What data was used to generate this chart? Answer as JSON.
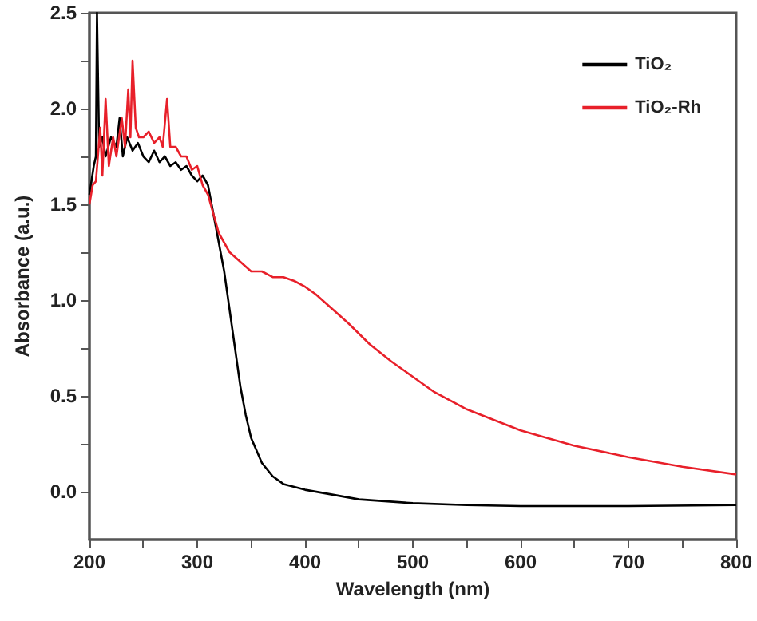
{
  "chart_data": {
    "type": "line",
    "xlabel": "Wavelength (nm)",
    "ylabel": "Absorbance (a.u.)",
    "xlim": [
      200,
      800
    ],
    "ylim": [
      -0.25,
      2.5
    ],
    "xticks": [
      200,
      {
        "value": 250,
        "label": null
      },
      300,
      {
        "value": 350,
        "label": null
      },
      400,
      {
        "value": 450,
        "label": null
      },
      500,
      {
        "value": 550,
        "label": null
      },
      600,
      {
        "value": 650,
        "label": null
      },
      700,
      {
        "value": 750,
        "label": null
      },
      800
    ],
    "yticks": [
      {
        "value": 0,
        "label": "0.0"
      },
      {
        "value": 0.25,
        "label": null
      },
      0.5,
      {
        "value": 0.75,
        "label": null
      },
      {
        "value": 1,
        "label": "1.0"
      },
      {
        "value": 1.25,
        "label": null
      },
      1.5,
      {
        "value": 1.75,
        "label": null
      },
      {
        "value": 2,
        "label": "2.0"
      },
      {
        "value": 2.25,
        "label": null
      },
      2.5
    ],
    "grid": false,
    "legend": "top right",
    "marker": "none",
    "line_style": "solid",
    "series": [
      {
        "name": "TiO₂",
        "color": "#000000",
        "x": [
          200,
          204,
          206,
          207,
          209,
          212,
          215,
          220,
          225,
          228,
          231,
          235,
          240,
          245,
          250,
          255,
          260,
          265,
          270,
          275,
          280,
          285,
          290,
          295,
          300,
          305,
          310,
          315,
          320,
          325,
          330,
          335,
          340,
          345,
          350,
          360,
          370,
          380,
          400,
          420,
          450,
          500,
          550,
          600,
          700,
          800
        ],
        "values": [
          1.55,
          1.7,
          1.75,
          2.5,
          1.8,
          1.85,
          1.75,
          1.85,
          1.8,
          1.95,
          1.75,
          1.85,
          1.78,
          1.82,
          1.75,
          1.72,
          1.78,
          1.72,
          1.75,
          1.7,
          1.72,
          1.68,
          1.7,
          1.65,
          1.62,
          1.65,
          1.6,
          1.45,
          1.3,
          1.15,
          0.95,
          0.75,
          0.55,
          0.4,
          0.28,
          0.15,
          0.08,
          0.04,
          0.01,
          -0.01,
          -0.04,
          -0.06,
          -0.07,
          -0.075,
          -0.075,
          -0.07
        ]
      },
      {
        "name": "TiO₂-Rh",
        "color": "#e8202a",
        "x": [
          200,
          203,
          206,
          210,
          212,
          215,
          218,
          222,
          225,
          230,
          233,
          236,
          238,
          240,
          243,
          246,
          250,
          255,
          260,
          265,
          268,
          272,
          275,
          280,
          285,
          290,
          295,
          300,
          305,
          310,
          315,
          320,
          325,
          330,
          340,
          350,
          360,
          370,
          380,
          390,
          400,
          410,
          420,
          440,
          460,
          480,
          500,
          520,
          550,
          600,
          650,
          700,
          750,
          800
        ],
        "values": [
          1.5,
          1.6,
          1.62,
          1.9,
          1.65,
          2.05,
          1.7,
          1.85,
          1.75,
          1.95,
          1.8,
          2.1,
          1.85,
          2.25,
          1.9,
          1.85,
          1.85,
          1.88,
          1.82,
          1.85,
          1.8,
          2.05,
          1.8,
          1.8,
          1.75,
          1.75,
          1.68,
          1.7,
          1.6,
          1.55,
          1.45,
          1.35,
          1.3,
          1.25,
          1.2,
          1.15,
          1.15,
          1.12,
          1.12,
          1.1,
          1.07,
          1.03,
          0.98,
          0.88,
          0.77,
          0.68,
          0.6,
          0.52,
          0.43,
          0.32,
          0.24,
          0.18,
          0.13,
          0.09
        ]
      }
    ]
  }
}
